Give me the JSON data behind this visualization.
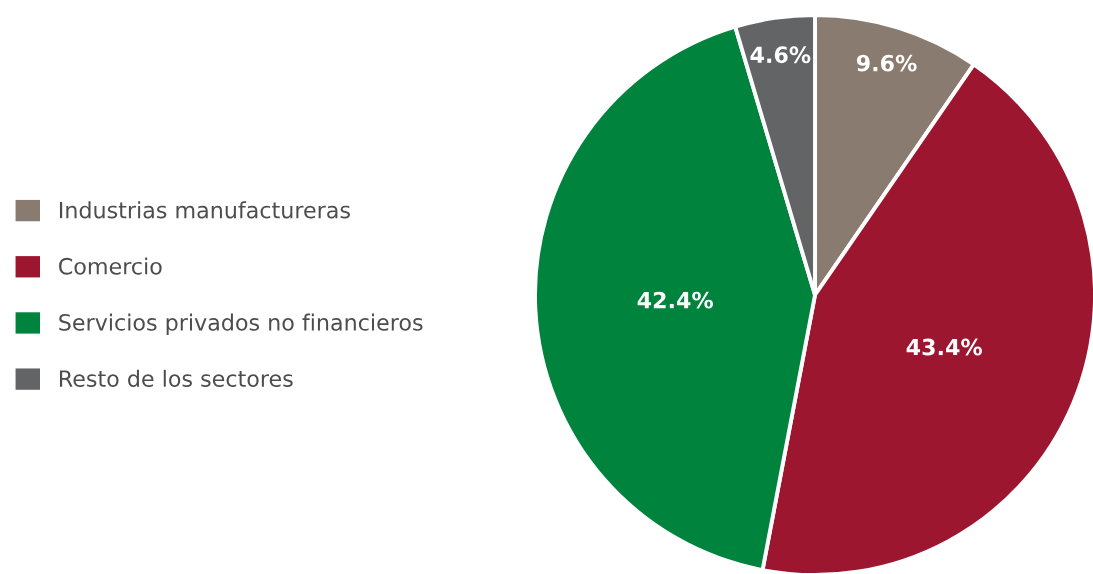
{
  "chart_data": {
    "type": "pie",
    "categories": [
      "Industrias manufactureras",
      "Comercio",
      "Servicios privados no financieros",
      "Resto de los sectores"
    ],
    "values": [
      9.6,
      43.4,
      42.4,
      4.6
    ],
    "colors": [
      "#8a7b70",
      "#9d1630",
      "#00843d",
      "#636466"
    ],
    "value_labels": [
      "9.6%",
      "43.4%",
      "42.4%",
      "4.6%"
    ],
    "legend": "left"
  }
}
